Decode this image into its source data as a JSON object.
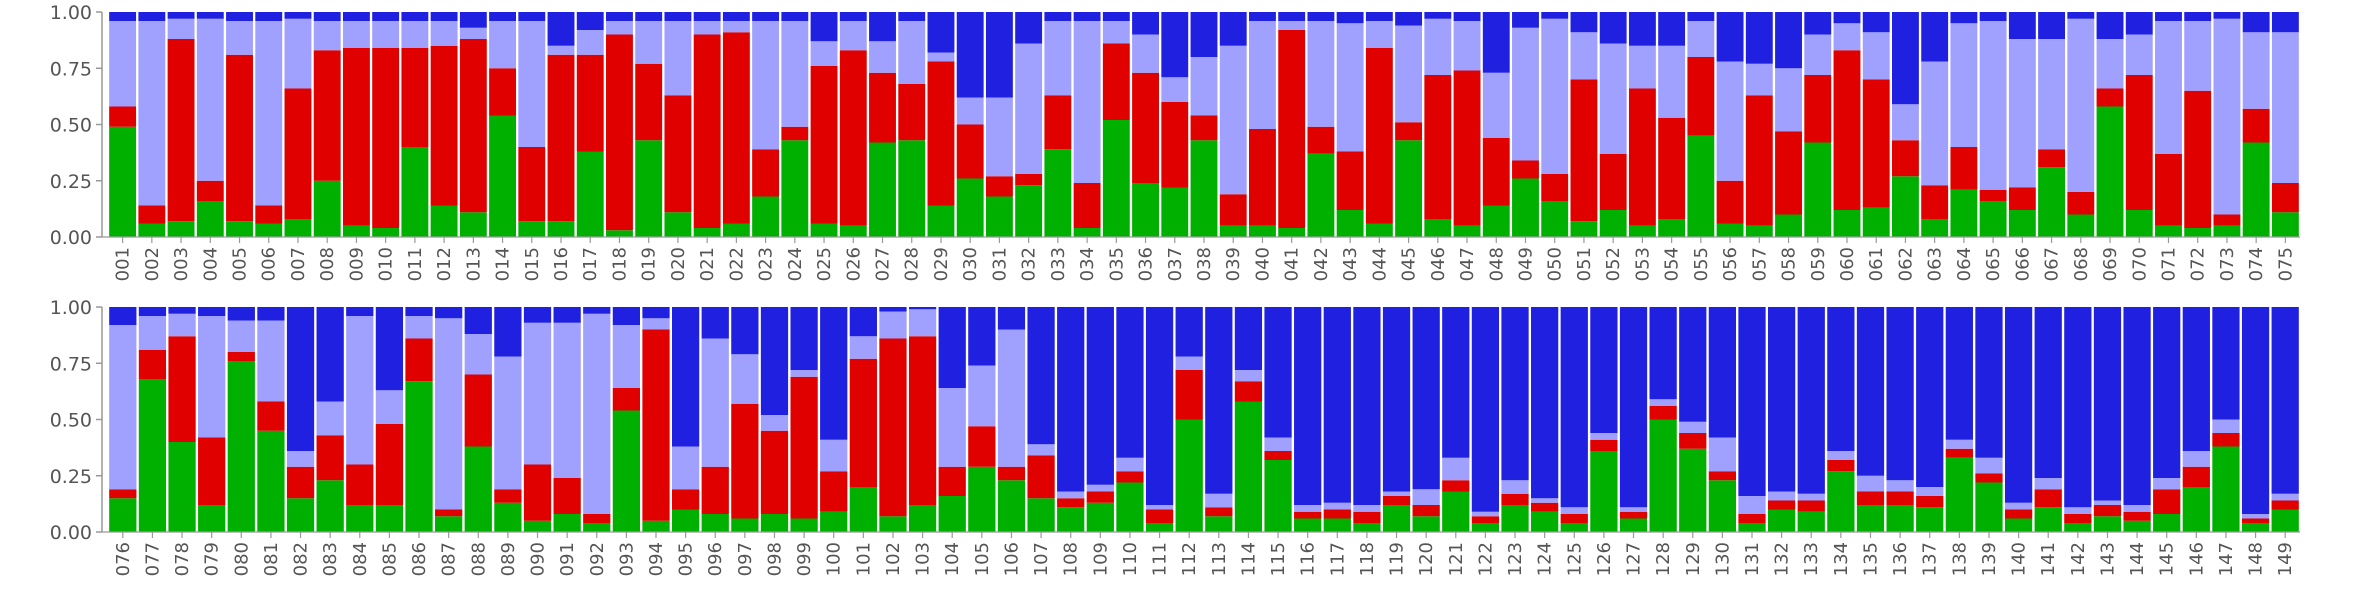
{
  "colors": {
    "k1": "#00b000",
    "k2": "#e00000",
    "k3": "#a0a0ff",
    "k4": "#2020e0",
    "axis": "#999999",
    "text": "#555555"
  },
  "chart_data": [
    {
      "type": "bar",
      "stacked": true,
      "title": "",
      "xlabel": "",
      "ylabel": "",
      "ylim": [
        0,
        1
      ],
      "yticks": [
        "0.00",
        "0.25",
        "0.50",
        "0.75",
        "1.00"
      ],
      "grid": false,
      "legend": "none",
      "categories": [
        "001",
        "002",
        "003",
        "004",
        "005",
        "006",
        "007",
        "008",
        "009",
        "010",
        "011",
        "012",
        "013",
        "014",
        "015",
        "016",
        "017",
        "018",
        "019",
        "020",
        "021",
        "022",
        "023",
        "024",
        "025",
        "026",
        "027",
        "028",
        "029",
        "030",
        "031",
        "032",
        "033",
        "034",
        "035",
        "036",
        "037",
        "038",
        "039",
        "040",
        "041",
        "042",
        "043",
        "044",
        "045",
        "046",
        "047",
        "048",
        "049",
        "050",
        "051",
        "052",
        "053",
        "054",
        "055",
        "056",
        "057",
        "058",
        "059",
        "060",
        "061",
        "062",
        "063",
        "064",
        "065",
        "066",
        "067",
        "068",
        "069",
        "070",
        "071",
        "072",
        "073",
        "074",
        "075"
      ],
      "series": [
        {
          "values": [
            0.49,
            0.06,
            0.07,
            0.16,
            0.07,
            0.06,
            0.08,
            0.25,
            0.05,
            0.04,
            0.4,
            0.14,
            0.11,
            0.54,
            0.07,
            0.07,
            0.38,
            0.03,
            0.43,
            0.11,
            0.04,
            0.06,
            0.18,
            0.43,
            0.06,
            0.05,
            0.42,
            0.43,
            0.14,
            0.26,
            0.18,
            0.23,
            0.39,
            0.04,
            0.52,
            0.24,
            0.22,
            0.43,
            0.05,
            0.05,
            0.04,
            0.37,
            0.12,
            0.06,
            0.43,
            0.08,
            0.05,
            0.14,
            0.26,
            0.16,
            0.07,
            0.12,
            0.05,
            0.08,
            0.45,
            0.06,
            0.05,
            0.1,
            0.42,
            0.12,
            0.13,
            0.27,
            0.08,
            0.21,
            0.16,
            0.12,
            0.31,
            0.1,
            0.58,
            0.12,
            0.05,
            0.04,
            0.05,
            0.42,
            0.11
          ]
        },
        {
          "values": [
            0.09,
            0.08,
            0.81,
            0.09,
            0.74,
            0.08,
            0.58,
            0.58,
            0.79,
            0.8,
            0.44,
            0.71,
            0.77,
            0.21,
            0.33,
            0.74,
            0.43,
            0.87,
            0.34,
            0.52,
            0.86,
            0.85,
            0.21,
            0.06,
            0.7,
            0.78,
            0.31,
            0.25,
            0.64,
            0.24,
            0.09,
            0.05,
            0.24,
            0.2,
            0.34,
            0.49,
            0.38,
            0.11,
            0.14,
            0.43,
            0.88,
            0.12,
            0.26,
            0.78,
            0.08,
            0.64,
            0.69,
            0.3,
            0.08,
            0.12,
            0.63,
            0.25,
            0.61,
            0.45,
            0.35,
            0.19,
            0.58,
            0.37,
            0.3,
            0.71,
            0.57,
            0.16,
            0.15,
            0.19,
            0.05,
            0.1,
            0.08,
            0.1,
            0.08,
            0.6,
            0.32,
            0.61,
            0.05,
            0.15,
            0.13
          ]
        },
        {
          "values": [
            0.38,
            0.82,
            0.09,
            0.72,
            0.15,
            0.82,
            0.31,
            0.13,
            0.12,
            0.12,
            0.12,
            0.11,
            0.05,
            0.21,
            0.56,
            0.04,
            0.11,
            0.06,
            0.19,
            0.33,
            0.06,
            0.05,
            0.57,
            0.47,
            0.11,
            0.13,
            0.14,
            0.28,
            0.04,
            0.12,
            0.35,
            0.58,
            0.33,
            0.72,
            0.1,
            0.17,
            0.11,
            0.26,
            0.66,
            0.48,
            0.04,
            0.47,
            0.57,
            0.12,
            0.43,
            0.25,
            0.22,
            0.29,
            0.59,
            0.69,
            0.21,
            0.49,
            0.19,
            0.32,
            0.16,
            0.53,
            0.14,
            0.28,
            0.18,
            0.12,
            0.21,
            0.16,
            0.55,
            0.55,
            0.75,
            0.66,
            0.49,
            0.77,
            0.22,
            0.18,
            0.59,
            0.31,
            0.87,
            0.34,
            0.67
          ]
        },
        {
          "values": [
            0.04,
            0.04,
            0.03,
            0.03,
            0.04,
            0.04,
            0.03,
            0.04,
            0.04,
            0.04,
            0.04,
            0.04,
            0.07,
            0.04,
            0.04,
            0.15,
            0.08,
            0.04,
            0.04,
            0.04,
            0.04,
            0.04,
            0.04,
            0.04,
            0.13,
            0.04,
            0.13,
            0.04,
            0.18,
            0.38,
            0.38,
            0.14,
            0.04,
            0.04,
            0.04,
            0.1,
            0.29,
            0.2,
            0.15,
            0.04,
            0.04,
            0.04,
            0.05,
            0.04,
            0.06,
            0.03,
            0.04,
            0.27,
            0.07,
            0.03,
            0.09,
            0.14,
            0.15,
            0.15,
            0.04,
            0.22,
            0.23,
            0.25,
            0.1,
            0.05,
            0.09,
            0.41,
            0.22,
            0.05,
            0.04,
            0.12,
            0.12,
            0.03,
            0.12,
            0.1,
            0.04,
            0.04,
            0.03,
            0.09,
            0.09
          ]
        }
      ]
    },
    {
      "type": "bar",
      "stacked": true,
      "title": "",
      "xlabel": "",
      "ylabel": "",
      "ylim": [
        0,
        1
      ],
      "yticks": [
        "0.00",
        "0.25",
        "0.50",
        "0.75",
        "1.00"
      ],
      "grid": false,
      "legend": "none",
      "categories": [
        "076",
        "077",
        "078",
        "079",
        "080",
        "081",
        "082",
        "083",
        "084",
        "085",
        "086",
        "087",
        "088",
        "089",
        "090",
        "091",
        "092",
        "093",
        "094",
        "095",
        "096",
        "097",
        "098",
        "099",
        "100",
        "101",
        "102",
        "103",
        "104",
        "105",
        "106",
        "107",
        "108",
        "109",
        "110",
        "111",
        "112",
        "113",
        "114",
        "115",
        "116",
        "117",
        "118",
        "119",
        "120",
        "121",
        "122",
        "123",
        "124",
        "125",
        "126",
        "127",
        "128",
        "129",
        "130",
        "131",
        "132",
        "133",
        "134",
        "135",
        "136",
        "137",
        "138",
        "139",
        "140",
        "141",
        "142",
        "143",
        "144",
        "145",
        "146",
        "147",
        "148",
        "149"
      ],
      "series": [
        {
          "values": [
            0.15,
            0.68,
            0.4,
            0.12,
            0.76,
            0.45,
            0.15,
            0.23,
            0.12,
            0.12,
            0.67,
            0.07,
            0.38,
            0.13,
            0.05,
            0.08,
            0.04,
            0.54,
            0.05,
            0.1,
            0.08,
            0.06,
            0.08,
            0.06,
            0.09,
            0.2,
            0.07,
            0.12,
            0.16,
            0.29,
            0.23,
            0.15,
            0.11,
            0.13,
            0.22,
            0.04,
            0.5,
            0.07,
            0.58,
            0.32,
            0.06,
            0.06,
            0.04,
            0.12,
            0.07,
            0.18,
            0.04,
            0.12,
            0.09,
            0.04,
            0.36,
            0.06,
            0.5,
            0.37,
            0.23,
            0.04,
            0.1,
            0.09,
            0.27,
            0.12,
            0.12,
            0.11,
            0.33,
            0.22,
            0.06,
            0.11,
            0.04,
            0.07,
            0.05,
            0.08,
            0.2,
            0.38,
            0.04,
            0.1
          ]
        },
        {
          "values": [
            0.04,
            0.13,
            0.47,
            0.3,
            0.04,
            0.13,
            0.14,
            0.2,
            0.18,
            0.36,
            0.19,
            0.03,
            0.32,
            0.06,
            0.25,
            0.16,
            0.04,
            0.1,
            0.85,
            0.09,
            0.21,
            0.51,
            0.37,
            0.63,
            0.18,
            0.57,
            0.79,
            0.75,
            0.13,
            0.18,
            0.06,
            0.19,
            0.04,
            0.05,
            0.05,
            0.06,
            0.22,
            0.04,
            0.09,
            0.04,
            0.03,
            0.04,
            0.05,
            0.04,
            0.05,
            0.05,
            0.03,
            0.05,
            0.04,
            0.04,
            0.05,
            0.03,
            0.06,
            0.07,
            0.04,
            0.04,
            0.04,
            0.05,
            0.05,
            0.06,
            0.06,
            0.05,
            0.04,
            0.04,
            0.04,
            0.08,
            0.04,
            0.05,
            0.04,
            0.11,
            0.09,
            0.06,
            0.02,
            0.04
          ]
        },
        {
          "values": [
            0.73,
            0.15,
            0.1,
            0.54,
            0.14,
            0.36,
            0.07,
            0.15,
            0.66,
            0.15,
            0.1,
            0.85,
            0.18,
            0.59,
            0.63,
            0.69,
            0.89,
            0.28,
            0.05,
            0.19,
            0.57,
            0.22,
            0.07,
            0.03,
            0.14,
            0.1,
            0.12,
            0.12,
            0.35,
            0.27,
            0.61,
            0.05,
            0.03,
            0.03,
            0.06,
            0.02,
            0.06,
            0.06,
            0.05,
            0.06,
            0.03,
            0.03,
            0.03,
            0.02,
            0.07,
            0.1,
            0.02,
            0.06,
            0.02,
            0.03,
            0.03,
            0.02,
            0.03,
            0.05,
            0.15,
            0.08,
            0.04,
            0.03,
            0.04,
            0.07,
            0.05,
            0.04,
            0.04,
            0.07,
            0.03,
            0.05,
            0.03,
            0.02,
            0.03,
            0.05,
            0.07,
            0.06,
            0.02,
            0.03
          ]
        },
        {
          "values": [
            0.08,
            0.04,
            0.03,
            0.04,
            0.06,
            0.06,
            0.64,
            0.42,
            0.04,
            0.37,
            0.04,
            0.05,
            0.12,
            0.22,
            0.07,
            0.07,
            0.03,
            0.08,
            0.05,
            0.62,
            0.14,
            0.21,
            0.48,
            0.28,
            0.59,
            0.13,
            0.02,
            0.01,
            0.36,
            0.26,
            0.1,
            0.61,
            0.82,
            0.79,
            0.67,
            0.88,
            0.22,
            0.83,
            0.28,
            0.58,
            0.88,
            0.87,
            0.88,
            0.82,
            0.81,
            0.67,
            0.91,
            0.77,
            0.85,
            0.89,
            0.56,
            0.89,
            0.41,
            0.51,
            0.58,
            0.84,
            0.82,
            0.83,
            0.64,
            0.75,
            0.77,
            0.8,
            0.59,
            0.67,
            0.87,
            0.76,
            0.89,
            0.86,
            0.88,
            0.76,
            0.64,
            0.5,
            0.92,
            0.83
          ]
        }
      ]
    }
  ]
}
